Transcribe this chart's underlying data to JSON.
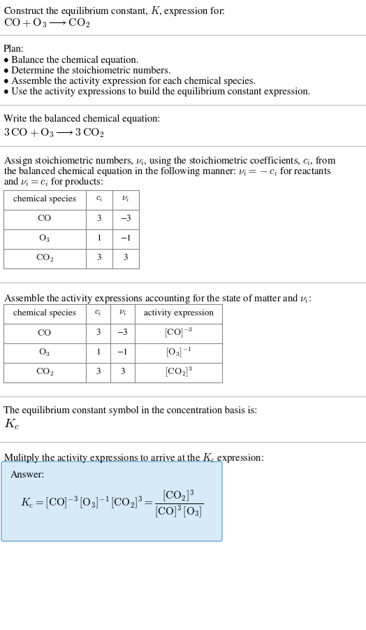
{
  "title_line1": "Construct the equilibrium constant, $K$, expression for:",
  "title_line2": "$\\mathrm{CO} + \\mathrm{O}_3 \\longrightarrow \\mathrm{CO}_2$",
  "plan_header": "Plan:",
  "plan_items": [
    "• Balance the chemical equation.",
    "• Determine the stoichiometric numbers.",
    "• Assemble the activity expression for each chemical species.",
    "• Use the activity expressions to build the equilibrium constant expression."
  ],
  "balanced_header": "Write the balanced chemical equation:",
  "balanced_eq": "$3\\,\\mathrm{CO} + \\mathrm{O}_3 \\longrightarrow 3\\,\\mathrm{CO}_2$",
  "stoich_lines": [
    "Assign stoichiometric numbers, $\\nu_i$, using the stoichiometric coefficients, $c_i$, from",
    "the balanced chemical equation in the following manner: $\\nu_i = -c_i$ for reactants",
    "and $\\nu_i = c_i$ for products:"
  ],
  "table1_headers": [
    "chemical species",
    "$c_i$",
    "$\\nu_i$"
  ],
  "table1_rows": [
    [
      "$\\mathrm{CO}$",
      "3",
      "−3"
    ],
    [
      "$\\mathrm{O}_3$",
      "1",
      "−1"
    ],
    [
      "$\\mathrm{CO}_2$",
      "3",
      "3"
    ]
  ],
  "activity_header": "Assemble the activity expressions accounting for the state of matter and $\\nu_i$:",
  "table2_headers": [
    "chemical species",
    "$c_i$",
    "$\\nu_i$",
    "activity expression"
  ],
  "table2_rows": [
    [
      "$\\mathrm{CO}$",
      "3",
      "−3",
      "$[\\mathrm{CO}]^{-3}$"
    ],
    [
      "$\\mathrm{O}_3$",
      "1",
      "−1",
      "$[\\mathrm{O}_3]^{-1}$"
    ],
    [
      "$\\mathrm{CO}_2$",
      "3",
      "3",
      "$[\\mathrm{CO}_2]^{3}$"
    ]
  ],
  "kc_header": "The equilibrium constant symbol in the concentration basis is:",
  "kc_symbol": "$K_c$",
  "multiply_header": "Mulitply the activity expressions to arrive at the $K_c$ expression:",
  "answer_label": "Answer:",
  "answer_eq": "$K_c = [\\mathrm{CO}]^{-3}\\,[\\mathrm{O}_3]^{-1}\\,[\\mathrm{CO}_2]^{3} = \\dfrac{[\\mathrm{CO}_2]^{3}}{[\\mathrm{CO}]^{3}\\,[\\mathrm{O}_3]}$",
  "answer_box_color": "#d6eaf8",
  "answer_box_border": "#7fb3d3",
  "bg_color": "#ffffff",
  "sep_color": "#bbbbbb",
  "table_color": "#888888"
}
